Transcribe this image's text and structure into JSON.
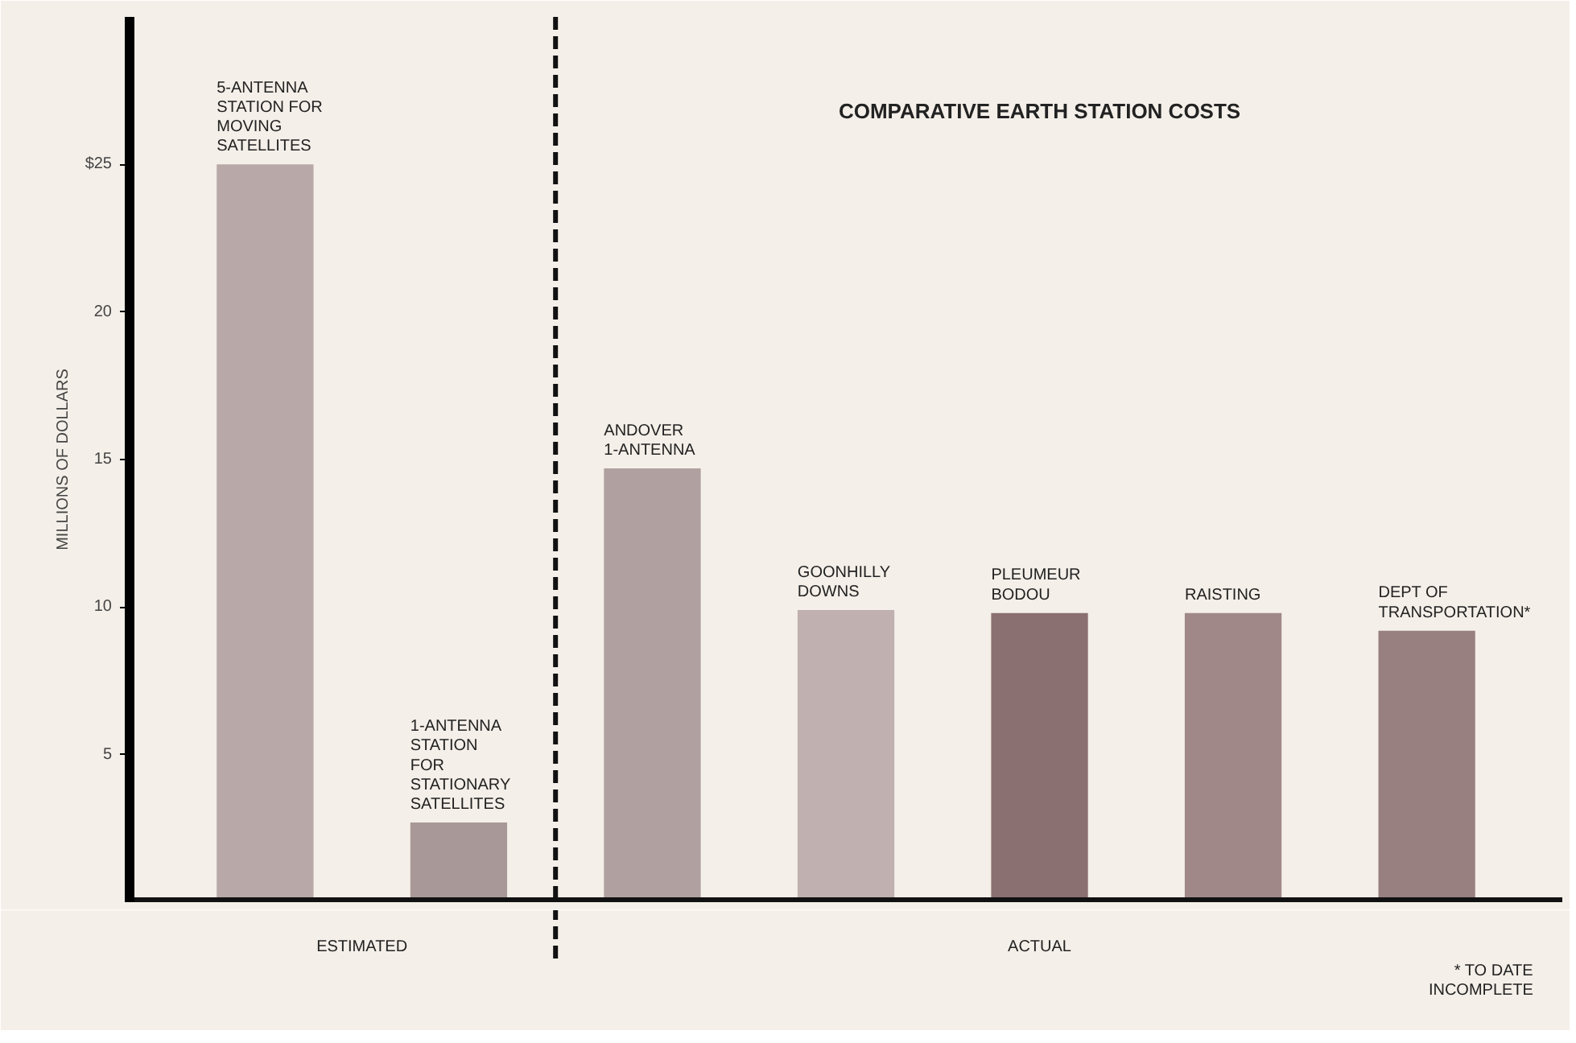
{
  "chart_data": {
    "type": "bar",
    "title": "COMPARATIVE EARTH STATION COSTS",
    "ylabel": "MILLIONS OF DOLLARS",
    "categories": [
      "5-ANTENNA\nSTATION FOR\nMOVING\nSATELLITES",
      "1-ANTENNA\nSTATION\nFOR\nSTATIONARY\nSATELLITES",
      "ANDOVER\n1-ANTENNA",
      "GOONHILLY\nDOWNS",
      "PLEUMEUR\nBODOU",
      "RAISTING",
      "DEPT OF\nTRANSPORTATION*"
    ],
    "values": [
      25,
      2.7,
      14.7,
      9.9,
      9.8,
      9.8,
      9.2
    ],
    "colors": [
      "#b8a8a8",
      "#a89898",
      "#b0a0a0",
      "#c0b0b0",
      "#8a7070",
      "#a08888",
      "#988080"
    ],
    "ylim": [
      0,
      30
    ],
    "yticks": [
      5,
      10,
      15,
      20,
      {
        "value": 25,
        "label": "$25"
      }
    ],
    "grid": false,
    "annotations": [
      "ESTIMATED",
      "ACTUAL",
      "* TO DATE\nINCOMPLETE"
    ]
  }
}
